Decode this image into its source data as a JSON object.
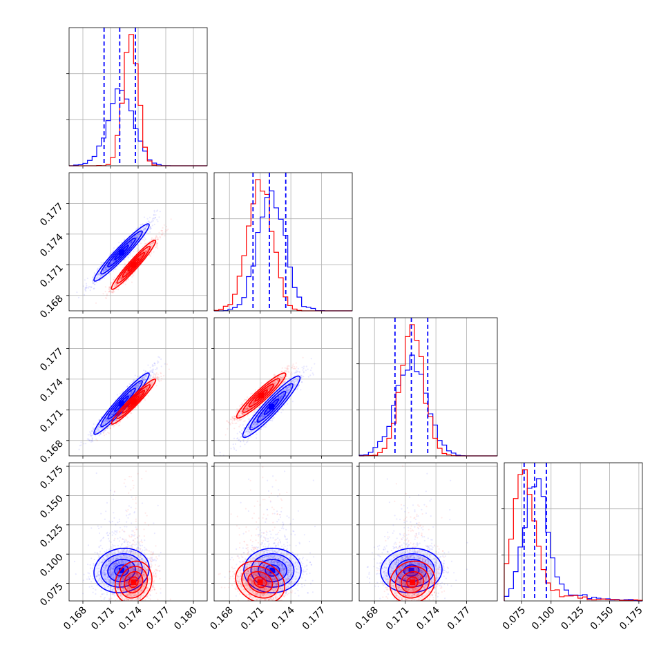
{
  "chart_data": {
    "type": "corner",
    "parameters": 4,
    "grid": true,
    "colors": {
      "red": "#ff0000",
      "blue": "#0000ff"
    },
    "axes": [
      {
        "range": [
          0.1665,
          0.1815
        ],
        "ticks": [
          0.168,
          0.171,
          0.174,
          0.177,
          0.18
        ],
        "tick_labels": [
          "0.168",
          "0.171",
          "0.174",
          "0.177",
          "0.180"
        ]
      },
      {
        "range": [
          0.1665,
          0.18
        ],
        "ticks": [
          0.168,
          0.171,
          0.174,
          0.177
        ],
        "tick_labels": [
          "0.168",
          "0.171",
          "0.174",
          "0.177"
        ]
      },
      {
        "range": [
          0.1665,
          0.18
        ],
        "ticks": [
          0.168,
          0.171,
          0.174,
          0.177
        ],
        "tick_labels": [
          "0.168",
          "0.171",
          "0.174",
          "0.177"
        ]
      },
      {
        "range": [
          0.06,
          0.178
        ],
        "ticks": [
          0.075,
          0.1,
          0.125,
          0.15,
          0.175
        ],
        "tick_labels": [
          "0.075",
          "0.100",
          "0.125",
          "0.150",
          "0.175"
        ]
      }
    ],
    "marginals": [
      {
        "param": 0,
        "quantiles_blue": [
          0.1703,
          0.172,
          0.1737
        ],
        "red": {
          "mean": 0.1732,
          "sd": 0.0008,
          "skew": 0
        },
        "blue": {
          "mean": 0.1721,
          "sd": 0.0014,
          "skew": 0
        }
      },
      {
        "param": 1,
        "quantiles_blue": [
          0.1703,
          0.1719,
          0.1735
        ],
        "red": {
          "mean": 0.171,
          "sd": 0.0012,
          "skew": 0
        },
        "blue": {
          "mean": 0.1721,
          "sd": 0.0013,
          "skew": 0
        }
      },
      {
        "param": 2,
        "quantiles_blue": [
          0.17,
          0.1716,
          0.1732
        ],
        "red": {
          "mean": 0.1717,
          "sd": 0.0011,
          "skew": 0
        },
        "blue": {
          "mean": 0.1716,
          "sd": 0.0015,
          "skew": 0
        }
      },
      {
        "param": 3,
        "quantiles_blue": [
          0.077,
          0.086,
          0.096
        ],
        "red": {
          "mean": 0.076,
          "sd": 0.009,
          "skew": 0.025
        },
        "blue": {
          "mean": 0.086,
          "sd": 0.0095,
          "skew": 0.02
        }
      }
    ],
    "pairs": [
      {
        "x": 0,
        "y": 1,
        "red": {
          "mx": 0.1735,
          "my": 0.171,
          "sx": 0.0012,
          "sy": 0.0012,
          "rho": 0.96,
          "skew_y": 0
        },
        "blue": {
          "mx": 0.1722,
          "my": 0.1722,
          "sx": 0.0015,
          "sy": 0.0014,
          "rho": 0.96,
          "skew_y": 0
        }
      },
      {
        "x": 0,
        "y": 2,
        "red": {
          "mx": 0.1735,
          "my": 0.1718,
          "sx": 0.0012,
          "sy": 0.0011,
          "rho": 0.96,
          "skew_y": 0
        },
        "blue": {
          "mx": 0.1722,
          "my": 0.1716,
          "sx": 0.0015,
          "sy": 0.0015,
          "rho": 0.96,
          "skew_y": 0
        }
      },
      {
        "x": 1,
        "y": 2,
        "red": {
          "mx": 0.1711,
          "my": 0.1724,
          "sx": 0.0012,
          "sy": 0.0011,
          "rho": 0.94,
          "skew_y": 0
        },
        "blue": {
          "mx": 0.1721,
          "my": 0.1713,
          "sx": 0.0014,
          "sy": 0.0015,
          "rho": 0.94,
          "skew_y": 0
        }
      },
      {
        "x": 0,
        "y": 3,
        "red": {
          "mx": 0.1735,
          "my": 0.076,
          "sx": 0.001,
          "sy": 0.009,
          "rho": 0.15,
          "skew_y": 0.025
        },
        "blue": {
          "mx": 0.1722,
          "my": 0.086,
          "sx": 0.0015,
          "sy": 0.0095,
          "rho": 0.1,
          "skew_y": 0.02
        }
      },
      {
        "x": 1,
        "y": 3,
        "red": {
          "mx": 0.171,
          "my": 0.076,
          "sx": 0.0012,
          "sy": 0.009,
          "rho": -0.2,
          "skew_y": 0.025
        },
        "blue": {
          "mx": 0.1722,
          "my": 0.086,
          "sx": 0.0014,
          "sy": 0.0095,
          "rho": 0.0,
          "skew_y": 0.02
        }
      },
      {
        "x": 2,
        "y": 3,
        "red": {
          "mx": 0.1717,
          "my": 0.076,
          "sx": 0.0011,
          "sy": 0.009,
          "rho": 0.1,
          "skew_y": 0.025
        },
        "blue": {
          "mx": 0.1716,
          "my": 0.086,
          "sx": 0.0015,
          "sy": 0.0095,
          "rho": 0.05,
          "skew_y": 0.02
        }
      }
    ],
    "contour_levels_sigma": [
      0.5,
      1.0,
      1.5,
      2.0
    ]
  }
}
